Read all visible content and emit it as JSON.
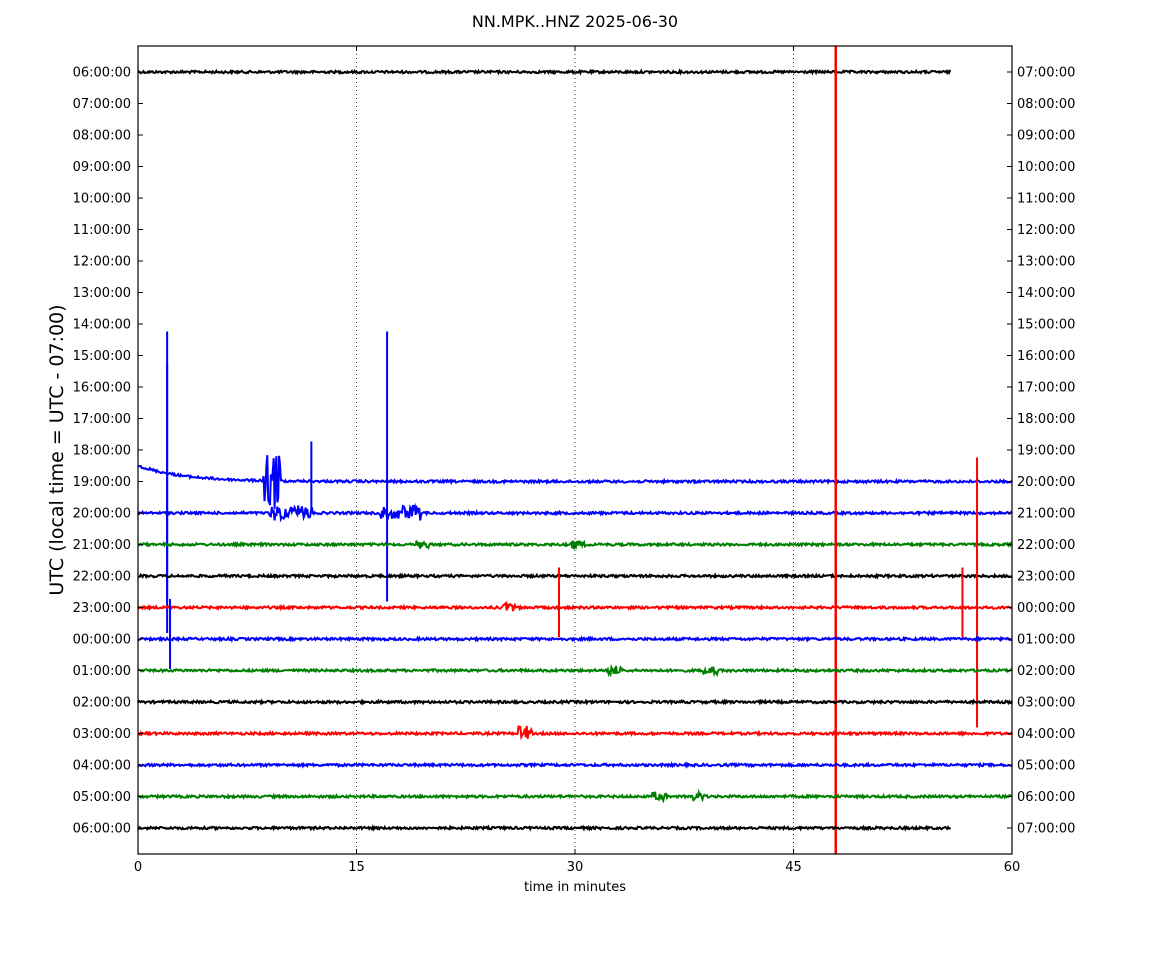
{
  "chart_data": {
    "type": "line",
    "subtype": "helicorder",
    "title": "NN.MPK..HNZ 2025-06-30",
    "xlabel": "time in minutes",
    "ylabel": "UTC (local time = UTC - 07:00)",
    "xlim": [
      0,
      60
    ],
    "x_ticks": [
      "0",
      "15",
      "30",
      "45",
      "60"
    ],
    "grid": "vertical dotted lines at 15, 30, 45",
    "left_tick_labels": [
      "06:00:00",
      "07:00:00",
      "08:00:00",
      "09:00:00",
      "10:00:00",
      "11:00:00",
      "12:00:00",
      "13:00:00",
      "14:00:00",
      "15:00:00",
      "16:00:00",
      "17:00:00",
      "18:00:00",
      "19:00:00",
      "20:00:00",
      "21:00:00",
      "22:00:00",
      "23:00:00",
      "00:00:00",
      "01:00:00",
      "02:00:00",
      "03:00:00",
      "04:00:00",
      "05:00:00",
      "06:00:00"
    ],
    "right_tick_labels": [
      "07:00:00",
      "08:00:00",
      "09:00:00",
      "10:00:00",
      "11:00:00",
      "12:00:00",
      "13:00:00",
      "14:00:00",
      "15:00:00",
      "16:00:00",
      "17:00:00",
      "18:00:00",
      "19:00:00",
      "20:00:00",
      "21:00:00",
      "22:00:00",
      "23:00:00",
      "00:00:00",
      "01:00:00",
      "02:00:00",
      "03:00:00",
      "04:00:00",
      "05:00:00",
      "06:00:00",
      "07:00:00"
    ],
    "color_cycle": [
      "#0000ff",
      "#008000",
      "#000000",
      "#ff0000"
    ],
    "traces": [
      {
        "row": 0,
        "label": "06:00:00",
        "color": "#000000",
        "x_end": 55.8,
        "events": [
          {
            "x": 47.9,
            "type": "vertical_spike",
            "color": "#ff0000",
            "note": "clipped vertical trace spanning full plot"
          }
        ]
      },
      {
        "row": 13,
        "label": "19:00:00",
        "color": "#0000ff",
        "offset_start": 1.0,
        "events": [
          {
            "x": 2.0,
            "type": "large_spike"
          },
          {
            "x": 9.2,
            "type": "spike_cluster"
          },
          {
            "x": 11.9,
            "type": "spike"
          },
          {
            "x": 17.1,
            "type": "large_spike"
          }
        ]
      },
      {
        "row": 14,
        "label": "20:00:00",
        "color": "#0000ff",
        "events": [
          {
            "x": 2.0,
            "type": "large_spike"
          },
          {
            "x": 9.0,
            "type": "noise_burst"
          },
          {
            "x": 16.5,
            "type": "noise_burst"
          }
        ]
      },
      {
        "row": 15,
        "label": "21:00:00",
        "color": "#008000",
        "events": [
          {
            "x": 19.5,
            "type": "small_burst"
          },
          {
            "x": 30.2,
            "type": "small_burst"
          }
        ]
      },
      {
        "row": 16,
        "label": "22:00:00",
        "color": "#000000",
        "events": []
      },
      {
        "row": 17,
        "label": "23:00:00",
        "color": "#ff0000",
        "events": [
          {
            "x": 25.5,
            "type": "small_burst"
          },
          {
            "x": 28.9,
            "type": "spike"
          },
          {
            "x": 47.9,
            "type": "vertical_spike"
          },
          {
            "x": 56.6,
            "type": "spike"
          },
          {
            "x": 57.6,
            "type": "large_spike"
          }
        ]
      },
      {
        "row": 18,
        "label": "00:00:00",
        "color": "#0000ff",
        "events": [
          {
            "x": 2.2,
            "type": "spike"
          }
        ]
      },
      {
        "row": 19,
        "label": "01:00:00",
        "color": "#008000",
        "events": [
          {
            "x": 32.8,
            "type": "small_burst"
          },
          {
            "x": 39.3,
            "type": "small_burst"
          }
        ]
      },
      {
        "row": 20,
        "label": "02:00:00",
        "color": "#000000",
        "events": []
      },
      {
        "row": 21,
        "label": "03:00:00",
        "color": "#ff0000",
        "events": [
          {
            "x": 26.6,
            "type": "burst"
          }
        ]
      },
      {
        "row": 22,
        "label": "04:00:00",
        "color": "#0000ff",
        "events": []
      },
      {
        "row": 23,
        "label": "05:00:00",
        "color": "#008000",
        "events": [
          {
            "x": 35.8,
            "type": "small_burst"
          },
          {
            "x": 38.5,
            "type": "small_burst"
          }
        ]
      },
      {
        "row": 24,
        "label": "06:00:00",
        "color": "#000000",
        "x_end": 55.8,
        "events": []
      }
    ]
  }
}
